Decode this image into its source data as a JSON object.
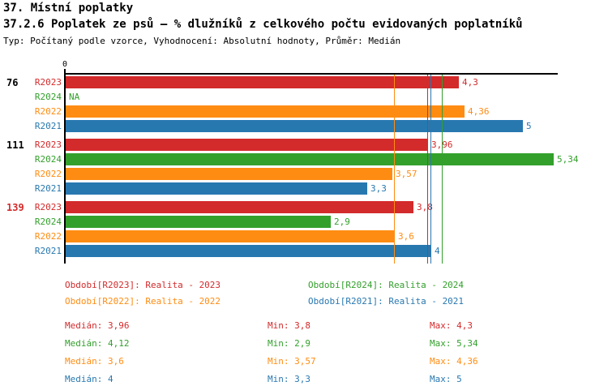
{
  "title": {
    "line1": "37. Místní poplatky",
    "line2": "37.2.6 Poplatek ze psů – % dlužníků z celkového počtu evidovaných poplatníků",
    "line3": "Typ: Počítaný podle vzorce, Vyhodnocení: Absolutní hodnoty, Průměr: Medián"
  },
  "series_colors": {
    "R2023": "#d32a2b",
    "R2024": "#33a02c",
    "R2022": "#ff8c12",
    "R2021": "#2878b0"
  },
  "chart_data": {
    "type": "bar",
    "orientation": "horizontal",
    "x_axis": {
      "origin_label": "0"
    },
    "xlim": [
      0,
      5.39
    ],
    "grid": false,
    "series_order": [
      "R2023",
      "R2024",
      "R2022",
      "R2021"
    ],
    "groups": [
      {
        "label": "76",
        "label_color": "#000000",
        "bars": [
          {
            "series": "R2023",
            "value": 4.3,
            "label": "4,3"
          },
          {
            "series": "R2024",
            "value": null,
            "label": "NA"
          },
          {
            "series": "R2022",
            "value": 4.36,
            "label": "4,36"
          },
          {
            "series": "R2021",
            "value": 5,
            "label": "5"
          }
        ]
      },
      {
        "label": "111",
        "label_color": "#000000",
        "bars": [
          {
            "series": "R2023",
            "value": 3.96,
            "label": "3,96"
          },
          {
            "series": "R2024",
            "value": 5.34,
            "label": "5,34"
          },
          {
            "series": "R2022",
            "value": 3.57,
            "label": "3,57"
          },
          {
            "series": "R2021",
            "value": 3.3,
            "label": "3,3"
          }
        ]
      },
      {
        "label": "139",
        "label_color": "#d32a2b",
        "bars": [
          {
            "series": "R2023",
            "value": 3.8,
            "label": "3,8"
          },
          {
            "series": "R2024",
            "value": 2.9,
            "label": "2,9"
          },
          {
            "series": "R2022",
            "value": 3.6,
            "label": "3,6"
          },
          {
            "series": "R2021",
            "value": 4,
            "label": "4"
          }
        ]
      }
    ],
    "median_lines": [
      {
        "series": "R2023",
        "value": 3.96
      },
      {
        "series": "R2024",
        "value": 4.12
      },
      {
        "series": "R2022",
        "value": 3.6
      },
      {
        "series": "R2021",
        "value": 4
      }
    ]
  },
  "legend": [
    {
      "series": "R2023",
      "label": "Období[R2023]: Realita - 2023"
    },
    {
      "series": "R2024",
      "label": "Období[R2024]: Realita - 2024"
    },
    {
      "series": "R2022",
      "label": "Období[R2022]: Realita - 2022"
    },
    {
      "series": "R2021",
      "label": "Období[R2021]: Realita - 2021"
    }
  ],
  "stats": [
    {
      "series": "R2023",
      "median": "Medián: 3,96",
      "min": "Min: 3,8",
      "max": "Max: 4,3"
    },
    {
      "series": "R2024",
      "median": "Medián: 4,12",
      "min": "Min: 2,9",
      "max": "Max: 5,34"
    },
    {
      "series": "R2022",
      "median": "Medián: 3,6",
      "min": "Min: 3,57",
      "max": "Max: 4,36"
    },
    {
      "series": "R2021",
      "median": "Medián: 4",
      "min": "Min: 3,3",
      "max": "Max: 5"
    }
  ]
}
